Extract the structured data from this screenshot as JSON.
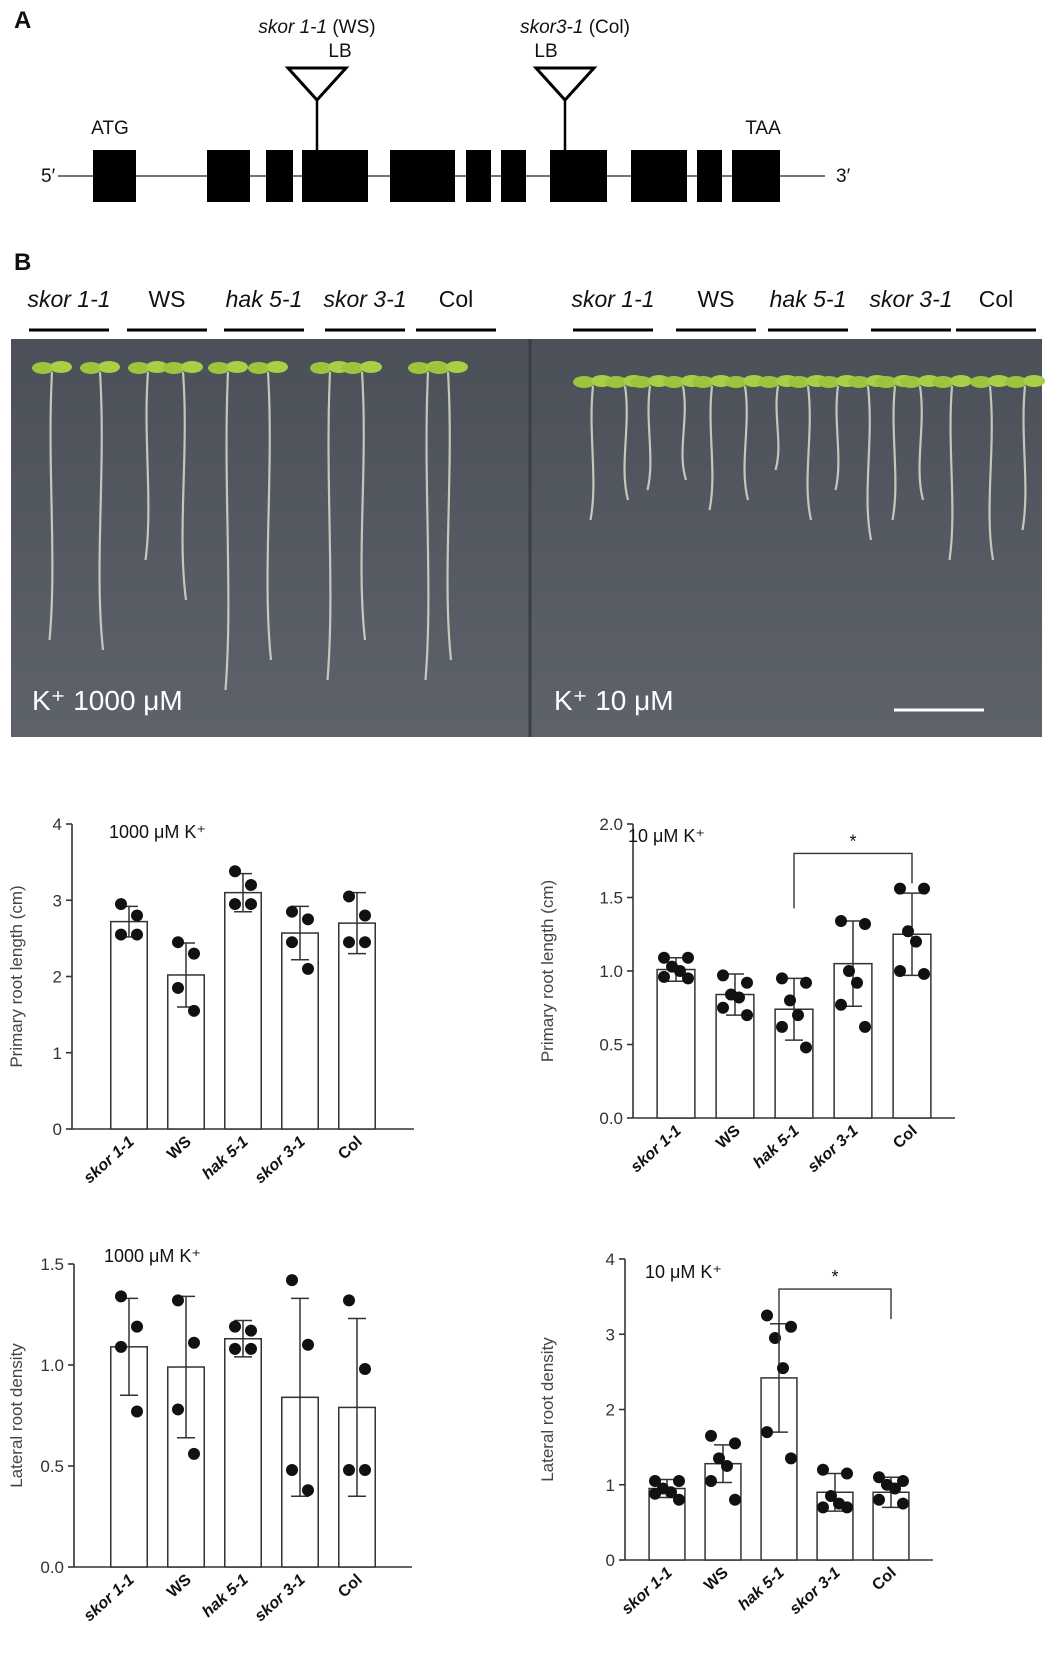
{
  "panel_a": {
    "label": "A",
    "insertions": [
      {
        "allele": "skor 1-1",
        "background": "(WS)",
        "marker": "LB"
      },
      {
        "allele": "skor3-1",
        "background": "(Col)",
        "marker": "LB"
      }
    ],
    "start_codon": "ATG",
    "stop_codon": "TAA",
    "five_prime": "5′",
    "three_prime": "3′"
  },
  "panel_b": {
    "label": "B",
    "plates": [
      {
        "condition": "K⁺ 1000 μM",
        "genotypes": [
          {
            "name": "skor 1-1",
            "italic": true
          },
          {
            "name": "WS",
            "italic": false
          },
          {
            "name": "hak 5-1",
            "italic": true
          },
          {
            "name": "skor 3-1",
            "italic": true
          },
          {
            "name": "Col",
            "italic": false
          }
        ]
      },
      {
        "condition": "K⁺ 10 μM",
        "genotypes": [
          {
            "name": "skor 1-1",
            "italic": true
          },
          {
            "name": "WS",
            "italic": false
          },
          {
            "name": "hak 5-1",
            "italic": true
          },
          {
            "name": "skor 3-1",
            "italic": true
          },
          {
            "name": "Col",
            "italic": false
          }
        ]
      }
    ]
  },
  "chart_data": [
    {
      "type": "bar",
      "annotation": "1000 μM K⁺",
      "y_label": "Primary root length (cm)",
      "categories": [
        "skor 1-1",
        "WS",
        "hak 5-1",
        "skor 3-1",
        "Col"
      ],
      "italic_categories": [
        true,
        false,
        true,
        true,
        false
      ],
      "values": [
        2.72,
        2.02,
        3.1,
        2.57,
        2.7
      ],
      "errors": [
        0.2,
        0.42,
        0.25,
        0.35,
        0.4
      ],
      "points": [
        [
          2.95,
          2.8,
          2.55,
          2.55
        ],
        [
          2.45,
          2.3,
          1.85,
          1.55
        ],
        [
          3.38,
          3.2,
          2.95,
          2.95
        ],
        [
          2.85,
          2.75,
          2.45,
          2.1
        ],
        [
          3.05,
          2.8,
          2.45,
          2.45
        ]
      ],
      "ylim": [
        0,
        4
      ],
      "yticks": [
        0,
        1,
        2,
        3,
        4
      ],
      "grid": false
    },
    {
      "type": "bar",
      "annotation": "10 μM K⁺",
      "y_label": "Primary root length (cm)",
      "categories": [
        "skor 1-1",
        "WS",
        "hak 5-1",
        "skor 3-1",
        "Col"
      ],
      "italic_categories": [
        true,
        false,
        true,
        true,
        false
      ],
      "values": [
        1.01,
        0.84,
        0.74,
        1.05,
        1.25
      ],
      "errors": [
        0.08,
        0.14,
        0.21,
        0.29,
        0.28
      ],
      "points": [
        [
          1.09,
          1.09,
          1.03,
          1.0,
          0.96,
          0.95
        ],
        [
          0.97,
          0.92,
          0.84,
          0.82,
          0.75,
          0.7
        ],
        [
          0.95,
          0.92,
          0.8,
          0.7,
          0.62,
          0.48
        ],
        [
          1.34,
          1.32,
          1.0,
          0.92,
          0.77,
          0.62
        ],
        [
          1.56,
          1.56,
          1.27,
          1.2,
          1.0,
          0.98
        ]
      ],
      "ylim": [
        0,
        2
      ],
      "yticks": [
        {
          "value": 0,
          "label": "0.0"
        },
        {
          "value": 0.5,
          "label": "0.5"
        },
        {
          "value": 1,
          "label": "1.0"
        },
        {
          "value": 1.5,
          "label": "1.5"
        },
        {
          "value": 2,
          "label": "2.0"
        }
      ],
      "grid": false,
      "significance": {
        "between": [
          "hak 5-1",
          "Col"
        ],
        "label": "*"
      }
    },
    {
      "type": "bar",
      "annotation": "1000 μM K⁺",
      "y_label": "Lateral root density",
      "categories": [
        "skor 1-1",
        "WS",
        "hak 5-1",
        "skor 3-1",
        "Col"
      ],
      "italic_categories": [
        true,
        false,
        true,
        true,
        false
      ],
      "values": [
        1.09,
        0.99,
        1.13,
        0.84,
        0.79
      ],
      "errors": [
        0.24,
        0.35,
        0.09,
        0.49,
        0.44
      ],
      "points": [
        [
          1.34,
          1.19,
          1.09,
          0.77
        ],
        [
          1.32,
          1.11,
          0.78,
          0.56
        ],
        [
          1.19,
          1.17,
          1.08,
          1.08
        ],
        [
          1.42,
          1.1,
          0.48,
          0.38
        ],
        [
          1.32,
          0.98,
          0.48,
          0.48
        ]
      ],
      "ylim": [
        0,
        1.5
      ],
      "yticks": [
        {
          "value": 0,
          "label": "0.0"
        },
        {
          "value": 0.5,
          "label": "0.5"
        },
        {
          "value": 1,
          "label": "1.0"
        },
        {
          "value": 1.5,
          "label": "1.5"
        }
      ],
      "grid": false
    },
    {
      "type": "bar",
      "annotation": "10 μM K⁺",
      "y_label": "Lateral root density",
      "categories": [
        "skor 1-1",
        "WS",
        "hak 5-1",
        "skor 3-1",
        "Col"
      ],
      "italic_categories": [
        true,
        false,
        true,
        true,
        false
      ],
      "values": [
        0.95,
        1.28,
        2.42,
        0.9,
        0.9
      ],
      "errors": [
        0.12,
        0.25,
        0.72,
        0.25,
        0.2
      ],
      "points": [
        [
          1.05,
          1.05,
          0.95,
          0.9,
          0.88,
          0.8
        ],
        [
          1.65,
          1.55,
          1.35,
          1.25,
          1.05,
          0.8
        ],
        [
          3.25,
          3.1,
          2.95,
          2.55,
          1.7,
          1.35
        ],
        [
          1.2,
          1.15,
          0.85,
          0.75,
          0.7,
          0.7
        ],
        [
          1.1,
          1.05,
          1.0,
          0.95,
          0.8,
          0.75
        ]
      ],
      "ylim": [
        0,
        4
      ],
      "yticks": [
        0,
        1,
        2,
        3,
        4
      ],
      "grid": false,
      "significance": {
        "between": [
          "hak 5-1",
          "Col"
        ],
        "label": "*"
      }
    }
  ]
}
